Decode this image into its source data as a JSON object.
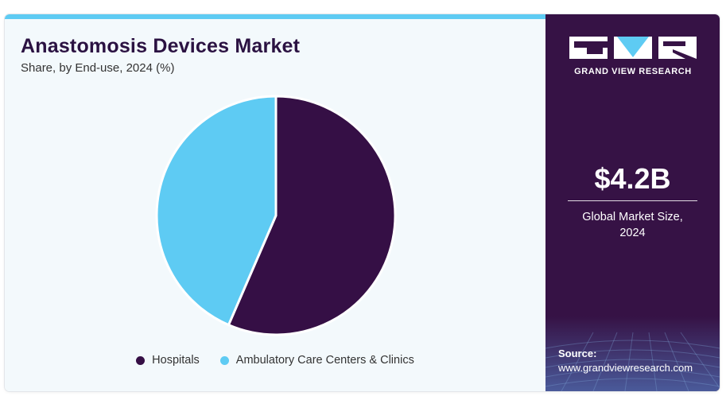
{
  "title": "Anastomosis Devices Market",
  "subtitle": "Share, by End-use, 2024 (%)",
  "colors": {
    "hospitals": "#350f45",
    "ambulatory": "#5ecbf3",
    "panel_dark": "#361245",
    "accent": "#5ecbf3"
  },
  "chart_data": {
    "type": "pie",
    "title": "Anastomosis Devices Market",
    "subtitle": "Share, by End-use, 2024 (%)",
    "categories": [
      "Hospitals",
      "Ambulatory Care Centers & Clinics"
    ],
    "values": [
      56.5,
      43.5
    ],
    "colors": [
      "#350f45",
      "#5ecbf3"
    ],
    "start_angle_deg": 0,
    "direction": "clockwise",
    "legend_position": "bottom"
  },
  "legend": {
    "items": [
      {
        "label": "Hospitals"
      },
      {
        "label": "Ambulatory Care Centers & Clinics"
      }
    ]
  },
  "brand": {
    "name": "GRAND VIEW RESEARCH",
    "logo_icon": "gvr-logo-icon"
  },
  "stat": {
    "value": "$4.2B",
    "label_line1": "Global Market Size,",
    "label_line2": "2024"
  },
  "source": {
    "label": "Source:",
    "url": "www.grandviewresearch.com"
  }
}
